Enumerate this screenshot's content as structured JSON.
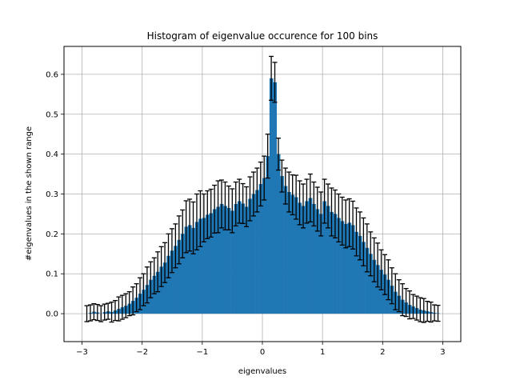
{
  "chart_data": {
    "type": "bar",
    "title": "Histogram of eigenvalue occurence for 100 bins",
    "xlabel": "eigenvalues",
    "ylabel": "#eigenvalues in the shown range",
    "xlim": [
      -3.3,
      3.3
    ],
    "ylim": [
      -0.07,
      0.67
    ],
    "xticks": [
      -3,
      -2,
      -1,
      0,
      1,
      2,
      3
    ],
    "xtick_labels": [
      "−3",
      "−2",
      "−1",
      "0",
      "1",
      "2",
      "3"
    ],
    "yticks": [
      0.0,
      0.1,
      0.2,
      0.3,
      0.4,
      0.5,
      0.6
    ],
    "ytick_labels": [
      "0.0",
      "0.1",
      "0.2",
      "0.3",
      "0.4",
      "0.5",
      "0.6"
    ],
    "grid": true,
    "bar_color": "#1f77b4",
    "errorbar_color": "#000000",
    "bin_range": [
      -2.95,
      2.95
    ],
    "bin_count": 100,
    "values": [
      0.0,
      0.002,
      0.005,
      0.003,
      0.0,
      0.004,
      0.006,
      0.004,
      0.008,
      0.012,
      0.016,
      0.02,
      0.025,
      0.032,
      0.04,
      0.05,
      0.06,
      0.072,
      0.085,
      0.095,
      0.105,
      0.118,
      0.128,
      0.145,
      0.158,
      0.17,
      0.185,
      0.2,
      0.218,
      0.222,
      0.215,
      0.23,
      0.238,
      0.24,
      0.248,
      0.252,
      0.262,
      0.268,
      0.275,
      0.27,
      0.265,
      0.258,
      0.275,
      0.282,
      0.276,
      0.268,
      0.288,
      0.3,
      0.31,
      0.325,
      0.34,
      0.395,
      0.59,
      0.58,
      0.4,
      0.345,
      0.32,
      0.305,
      0.298,
      0.292,
      0.278,
      0.27,
      0.282,
      0.29,
      0.275,
      0.262,
      0.25,
      0.282,
      0.27,
      0.255,
      0.25,
      0.24,
      0.232,
      0.225,
      0.228,
      0.222,
      0.205,
      0.195,
      0.18,
      0.165,
      0.15,
      0.135,
      0.122,
      0.11,
      0.098,
      0.085,
      0.07,
      0.055,
      0.045,
      0.035,
      0.028,
      0.022,
      0.018,
      0.014,
      0.01,
      0.008,
      0.006,
      0.004,
      0.002,
      0.001
    ],
    "errors": [
      0.02,
      0.02,
      0.02,
      0.02,
      0.02,
      0.02,
      0.02,
      0.025,
      0.025,
      0.03,
      0.03,
      0.03,
      0.03,
      0.035,
      0.035,
      0.04,
      0.04,
      0.045,
      0.045,
      0.045,
      0.05,
      0.05,
      0.05,
      0.055,
      0.055,
      0.055,
      0.06,
      0.06,
      0.065,
      0.065,
      0.065,
      0.07,
      0.07,
      0.06,
      0.06,
      0.06,
      0.06,
      0.065,
      0.06,
      0.06,
      0.055,
      0.055,
      0.055,
      0.055,
      0.05,
      0.05,
      0.055,
      0.055,
      0.055,
      0.055,
      0.055,
      0.055,
      0.055,
      0.05,
      0.04,
      0.04,
      0.045,
      0.05,
      0.05,
      0.055,
      0.055,
      0.055,
      0.055,
      0.06,
      0.055,
      0.055,
      0.055,
      0.055,
      0.055,
      0.06,
      0.06,
      0.06,
      0.06,
      0.06,
      0.06,
      0.06,
      0.06,
      0.06,
      0.06,
      0.06,
      0.055,
      0.055,
      0.055,
      0.05,
      0.05,
      0.05,
      0.045,
      0.045,
      0.04,
      0.04,
      0.035,
      0.035,
      0.03,
      0.03,
      0.03,
      0.03,
      0.025,
      0.025,
      0.02,
      0.02
    ]
  }
}
